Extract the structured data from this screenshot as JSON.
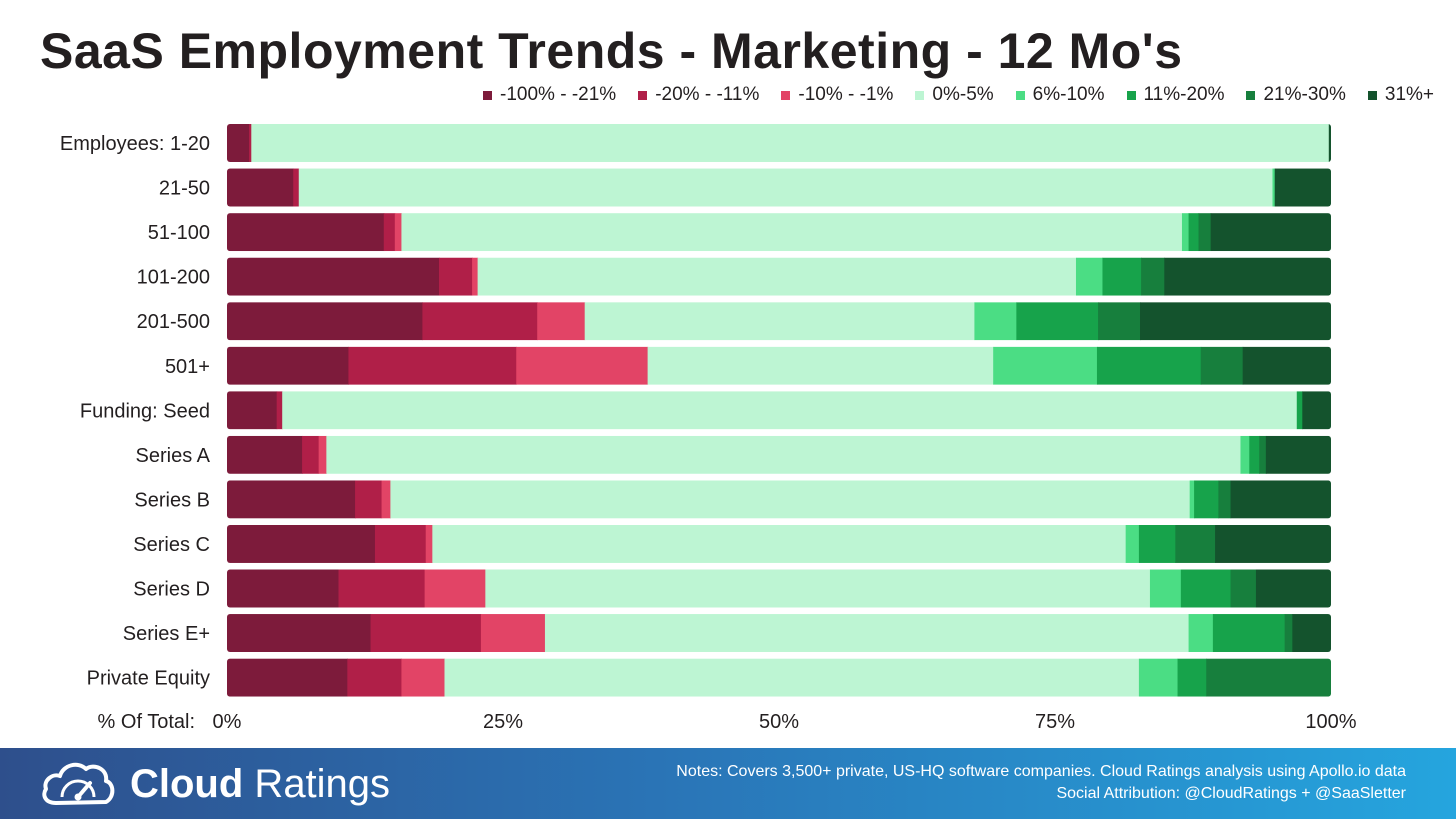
{
  "title": "SaaS Employment Trends - Marketing - 12 Mo's",
  "chart_data": {
    "type": "bar",
    "orientation": "horizontal",
    "stacked": true,
    "normalized": true,
    "xlim": [
      0,
      100
    ],
    "xticks": [
      0,
      25,
      50,
      75,
      100
    ],
    "xtick_labels": [
      "0%",
      "25%",
      "50%",
      "75%",
      "100%"
    ],
    "xlabel": "% Of Total:",
    "legend_position": "top-right",
    "series": [
      {
        "name": "-100% - -21%",
        "color": "#7d1b3b"
      },
      {
        "name": "-20% - -11%",
        "color": "#b01f48"
      },
      {
        "name": "-10% - -1%",
        "color": "#e24466"
      },
      {
        "name": "0%-5%",
        "color": "#bdf5d3"
      },
      {
        "name": "6%-10%",
        "color": "#4bdd84"
      },
      {
        "name": "11%-20%",
        "color": "#17a34b"
      },
      {
        "name": "21%-30%",
        "color": "#177f3d"
      },
      {
        "name": "31%+",
        "color": "#14532d"
      }
    ],
    "categories": [
      "Employees: 1-20",
      "21-50",
      "51-100",
      "101-200",
      "201-500",
      "501+",
      "Funding: Seed",
      "Series A",
      "Series B",
      "Series C",
      "Series D",
      "Series E+",
      "Private Equity"
    ],
    "values": [
      [
        2.0,
        0.2,
        0.0,
        97.6,
        0.0,
        0.0,
        0.0,
        0.2
      ],
      [
        6.0,
        0.5,
        0.0,
        88.2,
        0.2,
        0.0,
        0.0,
        5.1
      ],
      [
        14.2,
        1.0,
        0.6,
        70.7,
        0.6,
        0.9,
        1.1,
        10.9
      ],
      [
        19.2,
        3.0,
        0.5,
        54.2,
        2.4,
        3.5,
        2.1,
        15.1
      ],
      [
        17.7,
        10.4,
        4.3,
        35.3,
        3.8,
        7.4,
        3.8,
        17.3
      ],
      [
        11.0,
        15.2,
        11.9,
        31.3,
        9.4,
        9.4,
        3.8,
        8.0
      ],
      [
        4.5,
        0.5,
        0.0,
        91.9,
        0.0,
        0.5,
        0.0,
        2.6
      ],
      [
        6.8,
        1.5,
        0.7,
        82.8,
        0.8,
        0.9,
        0.6,
        5.9
      ],
      [
        11.6,
        2.4,
        0.8,
        72.4,
        0.4,
        2.2,
        1.1,
        9.1
      ],
      [
        13.4,
        4.6,
        0.6,
        62.8,
        1.2,
        3.3,
        3.6,
        10.5
      ],
      [
        10.1,
        7.8,
        5.5,
        60.2,
        2.8,
        4.5,
        2.3,
        6.8
      ],
      [
        13.0,
        10.0,
        5.8,
        58.3,
        2.2,
        6.5,
        0.7,
        3.5
      ],
      [
        10.9,
        4.9,
        3.9,
        62.9,
        3.5,
        2.6,
        11.3,
        0.0
      ]
    ]
  },
  "footer": {
    "brand_bold": "Cloud",
    "brand_light": " Ratings",
    "note_line1": "Notes: Covers 3,500+ private, US-HQ software companies. Cloud Ratings analysis using Apollo.io data",
    "note_line2": "Social Attribution: @CloudRatings + @SaaSletter",
    "logo_icon": "cloud-gauge-icon"
  }
}
